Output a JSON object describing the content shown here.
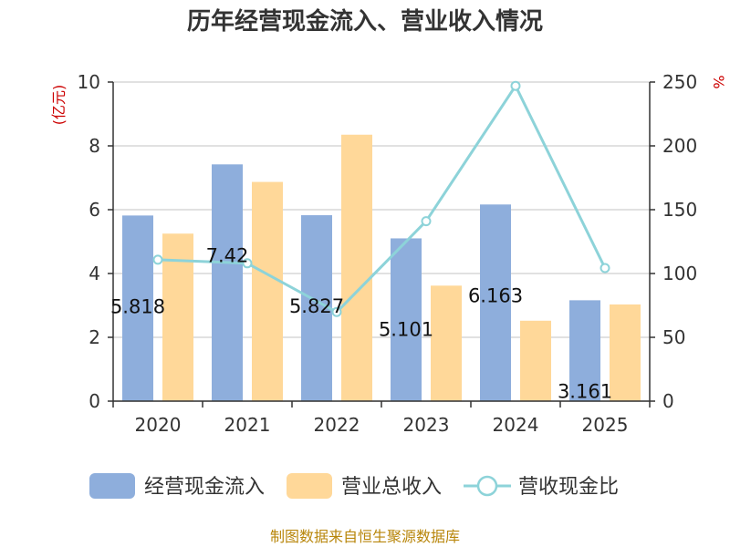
{
  "chart_data": {
    "type": "bar",
    "title": "历年经营现金流入、营业收入情况",
    "categories": [
      "2020",
      "2021",
      "2022",
      "2023",
      "2024",
      "2025"
    ],
    "series": [
      {
        "name": "经营现金流入",
        "kind": "bar",
        "axis": "left",
        "color": "#8eaedc",
        "values": [
          5.818,
          7.42,
          5.827,
          5.101,
          6.163,
          3.161
        ],
        "labels": [
          "5.818",
          "7.42",
          "5.827",
          "5.101",
          "6.163",
          "3.161"
        ]
      },
      {
        "name": "营业总收入",
        "kind": "bar",
        "axis": "left",
        "color": "#ffd899",
        "values": [
          5.25,
          6.87,
          8.35,
          3.62,
          2.52,
          3.03
        ]
      },
      {
        "name": "营收现金比",
        "kind": "line",
        "axis": "right",
        "color": "#8dd3d9",
        "values": [
          110.8,
          108.0,
          69.8,
          141.0,
          247.0,
          104.3
        ]
      }
    ],
    "y_left": {
      "unit": "(亿元)",
      "min": 0,
      "max": 10,
      "ticks": [
        "0",
        "2",
        "4",
        "6",
        "8",
        "10"
      ]
    },
    "y_right": {
      "unit": "%",
      "min": 0,
      "max": 250,
      "ticks": [
        "0",
        "50",
        "100",
        "150",
        "200",
        "250"
      ]
    },
    "grid": true,
    "legend": "bottom"
  },
  "source_note": "制图数据来自恒生聚源数据库"
}
